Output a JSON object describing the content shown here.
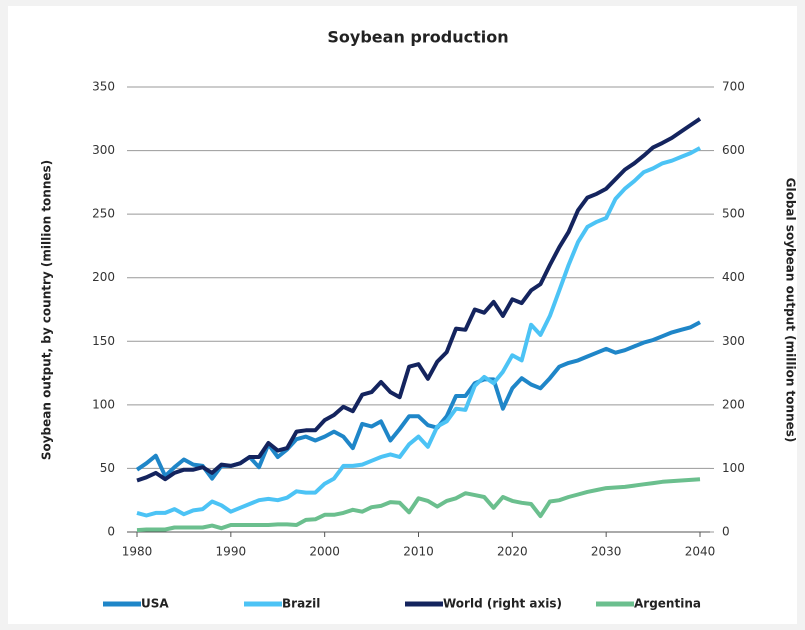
{
  "chart_data": {
    "type": "line",
    "title": "Soybean production",
    "y_label": "Soybean output,  by country (million tonnes)",
    "y2_label": "Global soybean output (million tonnes)",
    "x": [
      1980,
      1981,
      1982,
      1983,
      1984,
      1985,
      1986,
      1987,
      1988,
      1989,
      1990,
      1991,
      1992,
      1993,
      1994,
      1995,
      1996,
      1997,
      1998,
      1999,
      2000,
      2001,
      2002,
      2003,
      2004,
      2005,
      2006,
      2007,
      2008,
      2009,
      2010,
      2011,
      2012,
      2013,
      2014,
      2015,
      2016,
      2017,
      2018,
      2019,
      2020,
      2021,
      2022,
      2023,
      2024,
      2025,
      2026,
      2027,
      2028,
      2029,
      2030,
      2031,
      2032,
      2033,
      2034,
      2035,
      2036,
      2037,
      2038,
      2039,
      2040
    ],
    "series": [
      {
        "name": "USA",
        "color": "#1f86c8",
        "values": [
          49,
          54,
          60,
          44,
          51,
          57,
          53,
          52,
          42,
          52,
          52,
          54,
          59,
          51,
          69,
          59,
          65,
          73,
          75,
          72,
          75,
          79,
          75,
          66,
          85,
          83,
          87,
          72,
          81,
          91,
          91,
          84,
          82,
          91,
          107,
          107,
          117,
          120,
          120,
          97,
          113,
          121,
          116,
          113,
          121,
          130,
          133,
          135,
          138,
          141,
          144,
          141,
          143,
          146,
          149,
          151,
          154,
          157,
          159,
          161,
          165
        ]
      },
      {
        "name": "Brazil",
        "color": "#4cc3f5",
        "values": [
          15,
          13,
          15,
          15,
          18,
          14,
          17,
          18,
          24,
          21,
          16,
          19,
          22,
          25,
          26,
          25,
          27,
          32,
          31,
          31,
          38,
          42,
          52,
          52,
          53,
          56,
          59,
          61,
          59,
          69,
          75,
          67,
          83,
          87,
          97,
          96,
          115,
          122,
          117,
          126,
          139,
          135,
          163,
          155,
          170,
          190,
          210,
          228,
          240,
          244,
          247,
          262,
          270,
          276,
          283,
          286,
          290,
          292,
          295,
          298,
          302
        ]
      },
      {
        "name": "World (right axis)",
        "color": "#14245e",
        "axis": "y2",
        "values": [
          81,
          86,
          93,
          83,
          93,
          98,
          98,
          102,
          93,
          106,
          104,
          108,
          118,
          118,
          140,
          128,
          132,
          158,
          160,
          160,
          176,
          184,
          197,
          190,
          216,
          220,
          236,
          220,
          212,
          260,
          264,
          241,
          268,
          283,
          320,
          318,
          350,
          345,
          362,
          340,
          366,
          360,
          380,
          390,
          420,
          448,
          472,
          506,
          526,
          532,
          540,
          555,
          570,
          580,
          592,
          605,
          612,
          620,
          630,
          640,
          650
        ]
      },
      {
        "name": "Argentina",
        "color": "#6bbf8e",
        "values": [
          1.5,
          2,
          2,
          2,
          3.5,
          3.5,
          3.5,
          3.5,
          5,
          3,
          5.5,
          5.5,
          5.5,
          5.5,
          5.5,
          6,
          6,
          5.5,
          9.5,
          10,
          13.5,
          13.5,
          15,
          17.5,
          16,
          19.5,
          20.5,
          23.5,
          23,
          15.5,
          26.5,
          24.5,
          20,
          24.5,
          26.5,
          30.5,
          29,
          27.5,
          19,
          27.5,
          24.5,
          23,
          22,
          12.5,
          24,
          25,
          27.5,
          29.5,
          31.5,
          33,
          34.5,
          35,
          35.5,
          36.5,
          37.5,
          38.5,
          39.5,
          40,
          40.5,
          41,
          41.5
        ]
      }
    ],
    "xlim": [
      1980,
      2040
    ],
    "xticks": [
      1980,
      1990,
      2000,
      2010,
      2020,
      2030,
      2040
    ],
    "ylim": [
      0,
      350
    ],
    "yticks": [
      0,
      50,
      100,
      150,
      200,
      250,
      300,
      350
    ],
    "y2lim": [
      0,
      700
    ],
    "y2ticks": [
      0,
      100,
      200,
      300,
      400,
      500,
      600,
      700
    ],
    "grid": true,
    "legend": "bottom"
  }
}
